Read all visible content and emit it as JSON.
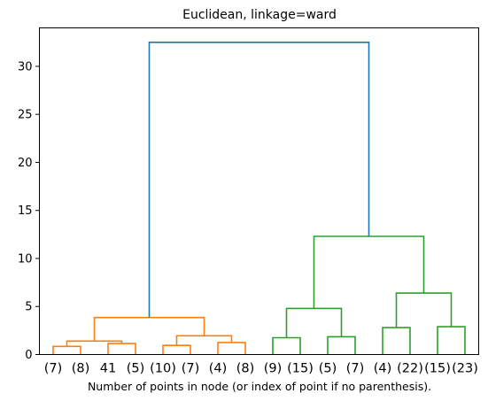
{
  "chart_data": {
    "type": "dendrogram",
    "title": "Euclidean, linkage=ward",
    "xlabel": "Number of points in node (or index of point if no parenthesis).",
    "ylabel": "",
    "ylim": [
      0,
      34
    ],
    "yticks": [
      0,
      5,
      10,
      15,
      20,
      25,
      30
    ],
    "grid": false,
    "leaves": [
      "(7)",
      "(8)",
      "41",
      "(5)",
      "(10)",
      "(7)",
      "(4)",
      "(8)",
      "(9)",
      "(15)",
      "(5)",
      "(7)",
      "(4)",
      "(22)",
      "(15)",
      "(23)"
    ],
    "merges": [
      {
        "left": 0,
        "right": 1,
        "height": 0.85,
        "color": "#ff7f0e"
      },
      {
        "left": 2,
        "right": 3,
        "height": 1.15,
        "color": "#ff7f0e"
      },
      {
        "left": 4,
        "right": 5,
        "height": 0.95,
        "color": "#ff7f0e"
      },
      {
        "left": 6,
        "right": 7,
        "height": 1.25,
        "color": "#ff7f0e"
      },
      {
        "left": 8,
        "right": 9,
        "height": 1.75,
        "color": "#2ca02c"
      },
      {
        "left": 10,
        "right": 11,
        "height": 1.85,
        "color": "#2ca02c"
      },
      {
        "left": 12,
        "right": 13,
        "height": 2.8,
        "color": "#2ca02c"
      },
      {
        "left": 14,
        "right": 15,
        "height": 2.9,
        "color": "#2ca02c"
      },
      {
        "left": 16,
        "right": 17,
        "height": 1.4,
        "color": "#ff7f0e"
      },
      {
        "left": 18,
        "right": 19,
        "height": 1.95,
        "color": "#ff7f0e"
      },
      {
        "left": 20,
        "right": 21,
        "height": 4.8,
        "color": "#2ca02c"
      },
      {
        "left": 22,
        "right": 23,
        "height": 6.4,
        "color": "#2ca02c"
      },
      {
        "left": 24,
        "right": 25,
        "height": 3.85,
        "color": "#ff7f0e"
      },
      {
        "left": 26,
        "right": 27,
        "height": 12.3,
        "color": "#2ca02c"
      },
      {
        "left": 28,
        "right": 29,
        "height": 32.5,
        "color": "#1f77b4"
      }
    ]
  }
}
